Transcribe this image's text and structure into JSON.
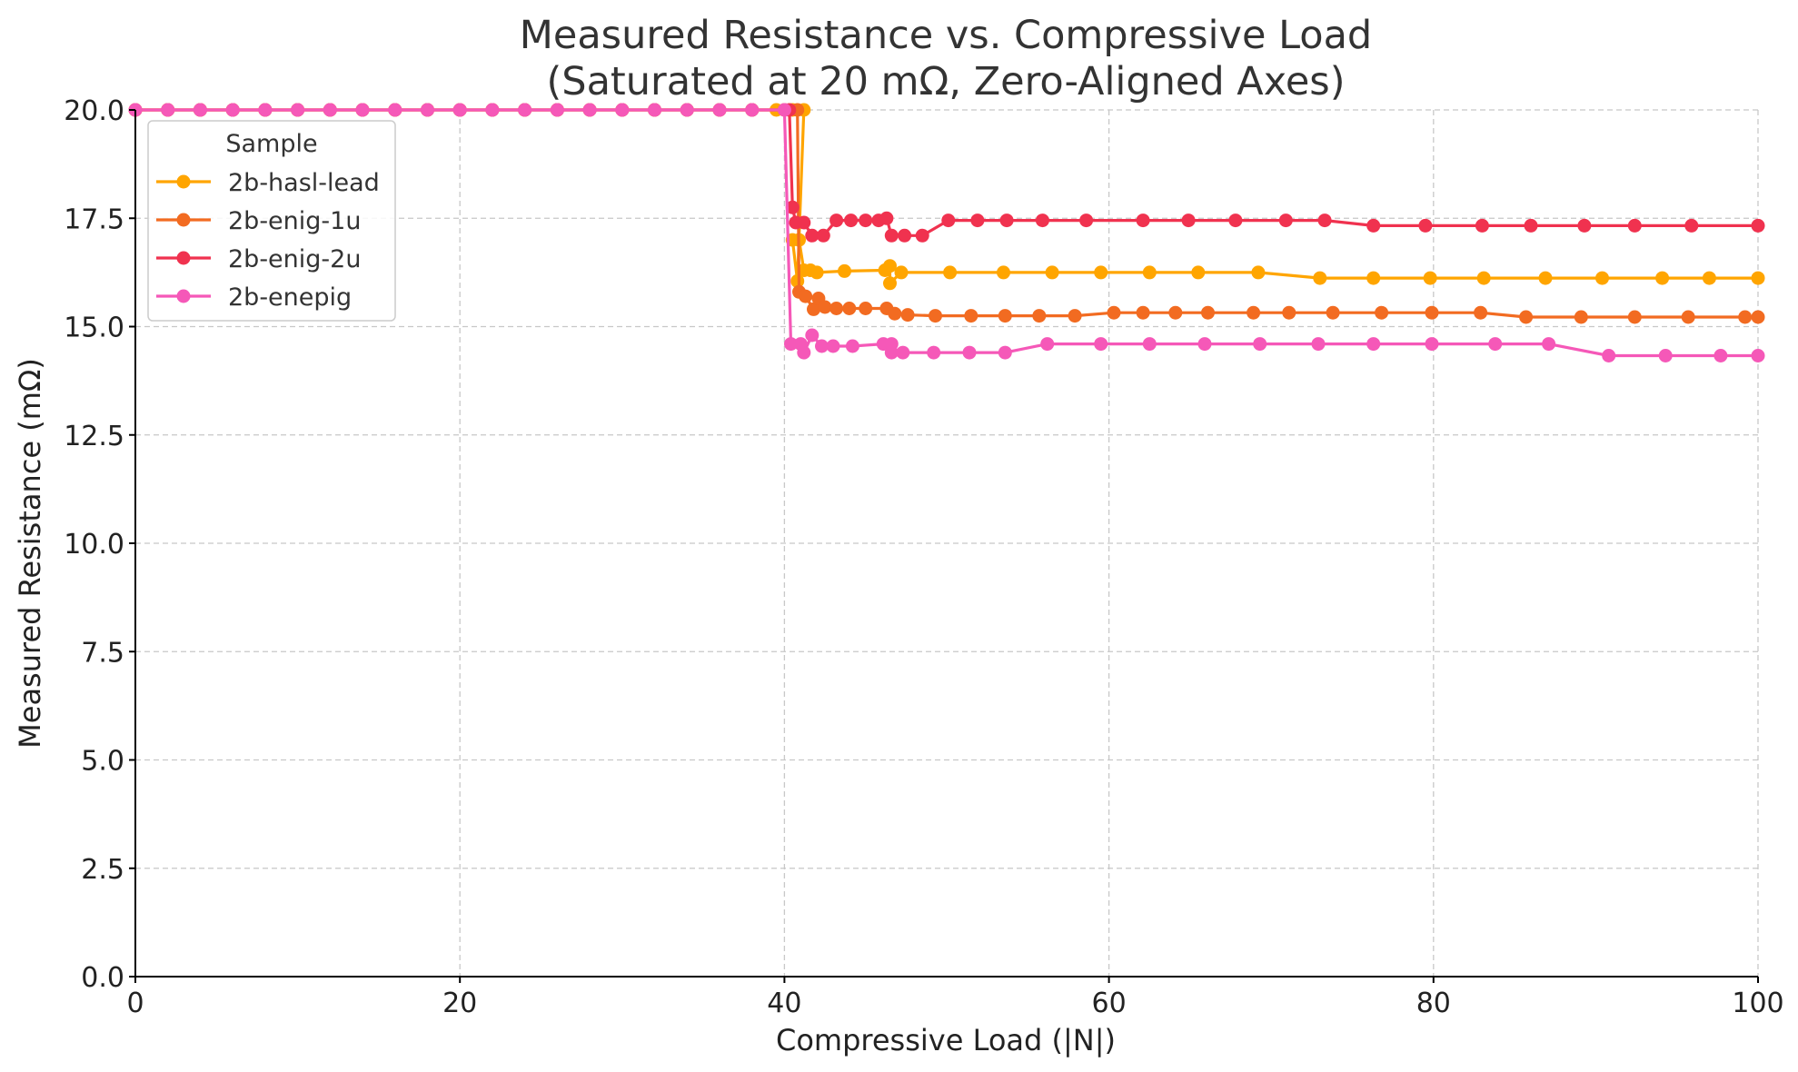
{
  "chart_data": {
    "type": "line",
    "title": "Measured Resistance vs. Compressive Load",
    "subtitle": "(Saturated at 20 mΩ, Zero-Aligned Axes)",
    "xlabel": "Compressive Load (|N|)",
    "ylabel": "Measured Resistance (mΩ)",
    "xlim": [
      0,
      100
    ],
    "ylim": [
      0,
      20
    ],
    "x_ticks": [
      0,
      20,
      40,
      60,
      80,
      100
    ],
    "x_tick_labels": [
      "0",
      "20",
      "40",
      "60",
      "80",
      "100"
    ],
    "y_ticks": [
      0,
      2.5,
      5,
      7.5,
      10,
      12.5,
      15,
      17.5,
      20
    ],
    "y_tick_labels": [
      "0.0",
      "2.5",
      "5.0",
      "7.5",
      "10.0",
      "12.5",
      "15.0",
      "17.5",
      "20.0"
    ],
    "grid": true,
    "legend": {
      "title": "Sample",
      "placement": "upper-left"
    },
    "series": [
      {
        "name": "2b-hasl-lead",
        "color": "#ffa500",
        "points": [
          [
            0,
            20
          ],
          [
            2,
            20
          ],
          [
            4,
            20
          ],
          [
            6,
            20
          ],
          [
            8,
            20
          ],
          [
            10,
            20
          ],
          [
            12,
            20
          ],
          [
            14,
            20
          ],
          [
            16,
            20
          ],
          [
            18,
            20
          ],
          [
            20,
            20
          ],
          [
            22,
            20
          ],
          [
            24,
            20
          ],
          [
            26,
            20
          ],
          [
            28,
            20
          ],
          [
            30,
            20
          ],
          [
            32,
            20
          ],
          [
            34,
            20
          ],
          [
            36,
            20
          ],
          [
            38,
            20
          ],
          [
            39.5,
            20
          ],
          [
            40.5,
            20
          ],
          [
            41.2,
            20
          ],
          [
            40.8,
            16.05
          ],
          [
            40.5,
            17.0
          ],
          [
            40.9,
            17.0
          ],
          [
            41.2,
            16.3
          ],
          [
            41.6,
            16.3
          ],
          [
            42,
            16.25
          ],
          [
            43.7,
            16.28
          ],
          [
            46.2,
            16.3
          ],
          [
            46.5,
            16.4
          ],
          [
            46.5,
            16.0
          ],
          [
            47.2,
            16.25
          ],
          [
            50.2,
            16.25
          ],
          [
            53.5,
            16.25
          ],
          [
            56.5,
            16.25
          ],
          [
            59.5,
            16.25
          ],
          [
            62.5,
            16.25
          ],
          [
            65.5,
            16.25
          ],
          [
            69.2,
            16.25
          ],
          [
            73,
            16.12
          ],
          [
            76.3,
            16.12
          ],
          [
            79.8,
            16.12
          ],
          [
            83.1,
            16.12
          ],
          [
            86.9,
            16.12
          ],
          [
            90.4,
            16.12
          ],
          [
            94.1,
            16.12
          ],
          [
            97,
            16.12
          ],
          [
            100,
            16.12
          ]
        ]
      },
      {
        "name": "2b-enig-1u",
        "color": "#f26b21",
        "points": [
          [
            0,
            20
          ],
          [
            2,
            20
          ],
          [
            4,
            20
          ],
          [
            6,
            20
          ],
          [
            8,
            20
          ],
          [
            10,
            20
          ],
          [
            12,
            20
          ],
          [
            14,
            20
          ],
          [
            16,
            20
          ],
          [
            18,
            20
          ],
          [
            20,
            20
          ],
          [
            22,
            20
          ],
          [
            24,
            20
          ],
          [
            26,
            20
          ],
          [
            28,
            20
          ],
          [
            30,
            20
          ],
          [
            32,
            20
          ],
          [
            34,
            20
          ],
          [
            36,
            20
          ],
          [
            38,
            20
          ],
          [
            40,
            20
          ],
          [
            40.8,
            20
          ],
          [
            40.9,
            15.8
          ],
          [
            41.3,
            15.7
          ],
          [
            41.8,
            15.4
          ],
          [
            42.1,
            15.65
          ],
          [
            42.5,
            15.45
          ],
          [
            43.2,
            15.42
          ],
          [
            44,
            15.42
          ],
          [
            45,
            15.42
          ],
          [
            46.3,
            15.42
          ],
          [
            46.8,
            15.3
          ],
          [
            47.6,
            15.27
          ],
          [
            49.3,
            15.25
          ],
          [
            51.5,
            15.25
          ],
          [
            53.6,
            15.25
          ],
          [
            55.7,
            15.25
          ],
          [
            57.9,
            15.25
          ],
          [
            60.3,
            15.32
          ],
          [
            62.1,
            15.32
          ],
          [
            64.1,
            15.32
          ],
          [
            66.1,
            15.32
          ],
          [
            68.9,
            15.32
          ],
          [
            71.1,
            15.32
          ],
          [
            73.8,
            15.32
          ],
          [
            76.8,
            15.32
          ],
          [
            79.9,
            15.32
          ],
          [
            82.9,
            15.32
          ],
          [
            85.7,
            15.22
          ],
          [
            89.1,
            15.22
          ],
          [
            92.4,
            15.22
          ],
          [
            95.7,
            15.22
          ],
          [
            99.2,
            15.22
          ],
          [
            100,
            15.22
          ]
        ]
      },
      {
        "name": "2b-enig-2u",
        "color": "#f0324f",
        "points": [
          [
            0,
            20
          ],
          [
            2,
            20
          ],
          [
            4,
            20
          ],
          [
            6,
            20
          ],
          [
            8,
            20
          ],
          [
            10,
            20
          ],
          [
            12,
            20
          ],
          [
            14,
            20
          ],
          [
            16,
            20
          ],
          [
            18,
            20
          ],
          [
            20,
            20
          ],
          [
            22,
            20
          ],
          [
            24,
            20
          ],
          [
            26,
            20
          ],
          [
            28,
            20
          ],
          [
            30,
            20
          ],
          [
            32,
            20
          ],
          [
            34,
            20
          ],
          [
            36,
            20
          ],
          [
            38,
            20
          ],
          [
            40.3,
            20
          ],
          [
            40.5,
            17.75
          ],
          [
            40.7,
            17.4
          ],
          [
            41.2,
            17.4
          ],
          [
            41.7,
            17.1
          ],
          [
            42.4,
            17.1
          ],
          [
            43.2,
            17.45
          ],
          [
            44.1,
            17.45
          ],
          [
            45,
            17.45
          ],
          [
            45.8,
            17.45
          ],
          [
            46.3,
            17.5
          ],
          [
            46.6,
            17.1
          ],
          [
            47.4,
            17.1
          ],
          [
            48.5,
            17.1
          ],
          [
            50.1,
            17.45
          ],
          [
            51.9,
            17.45
          ],
          [
            53.7,
            17.45
          ],
          [
            55.9,
            17.45
          ],
          [
            58.6,
            17.45
          ],
          [
            62.1,
            17.45
          ],
          [
            64.9,
            17.45
          ],
          [
            67.8,
            17.45
          ],
          [
            70.9,
            17.45
          ],
          [
            73.3,
            17.45
          ],
          [
            76.3,
            17.33
          ],
          [
            79.5,
            17.33
          ],
          [
            83,
            17.33
          ],
          [
            86,
            17.33
          ],
          [
            89.3,
            17.33
          ],
          [
            92.4,
            17.33
          ],
          [
            95.9,
            17.33
          ],
          [
            100,
            17.33
          ]
        ]
      },
      {
        "name": "2b-enepig",
        "color": "#f558b8",
        "points": [
          [
            0,
            20
          ],
          [
            2,
            20
          ],
          [
            4,
            20
          ],
          [
            6,
            20
          ],
          [
            8,
            20
          ],
          [
            10,
            20
          ],
          [
            12,
            20
          ],
          [
            14,
            20
          ],
          [
            16,
            20
          ],
          [
            18,
            20
          ],
          [
            20,
            20
          ],
          [
            22,
            20
          ],
          [
            24,
            20
          ],
          [
            26,
            20
          ],
          [
            28,
            20
          ],
          [
            30,
            20
          ],
          [
            32,
            20
          ],
          [
            34,
            20
          ],
          [
            36,
            20
          ],
          [
            38,
            20
          ],
          [
            40,
            20
          ],
          [
            40.4,
            14.6
          ],
          [
            41,
            14.6
          ],
          [
            41.2,
            14.4
          ],
          [
            41.7,
            14.8
          ],
          [
            42.3,
            14.55
          ],
          [
            43,
            14.55
          ],
          [
            44.2,
            14.55
          ],
          [
            46.1,
            14.6
          ],
          [
            46.6,
            14.6
          ],
          [
            46.6,
            14.4
          ],
          [
            47.3,
            14.4
          ],
          [
            49.2,
            14.4
          ],
          [
            51.4,
            14.4
          ],
          [
            53.6,
            14.4
          ],
          [
            56.2,
            14.6
          ],
          [
            59.5,
            14.6
          ],
          [
            62.5,
            14.6
          ],
          [
            65.9,
            14.6
          ],
          [
            69.3,
            14.6
          ],
          [
            72.9,
            14.6
          ],
          [
            76.3,
            14.6
          ],
          [
            79.9,
            14.6
          ],
          [
            83.8,
            14.6
          ],
          [
            87.1,
            14.6
          ],
          [
            90.8,
            14.33
          ],
          [
            94.3,
            14.33
          ],
          [
            97.7,
            14.33
          ],
          [
            100,
            14.33
          ]
        ]
      }
    ]
  }
}
